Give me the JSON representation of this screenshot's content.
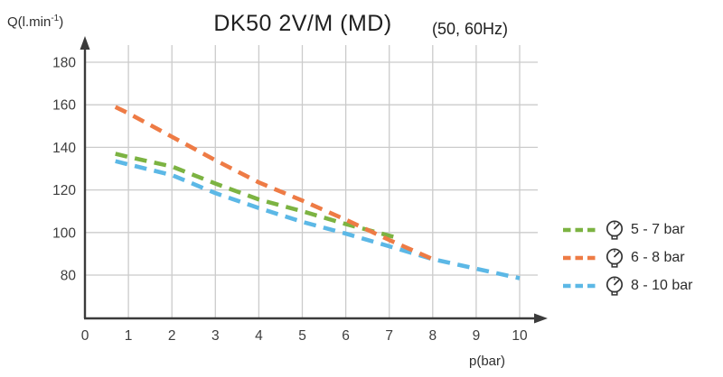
{
  "title": "DK50 2V/M (MD)",
  "subtitle": "(50, 60Hz)",
  "y_axis_label": {
    "base": "Q(l.min",
    "sup": "-1",
    "close": ")"
  },
  "x_axis_label": "p(bar)",
  "colors": {
    "axis": "#3b3b3b",
    "grid": "#cbcbcb",
    "tick_text": "#3d3d3d",
    "green": "#7cb342",
    "orange": "#ee7b45",
    "blue": "#5cb8e6"
  },
  "legend": [
    {
      "label": "5 - 7 bar",
      "color": "#7cb342",
      "icon": "pressure-gauge-icon"
    },
    {
      "label": "6 - 8 bar",
      "color": "#ee7b45",
      "icon": "pressure-gauge-icon"
    },
    {
      "label": "8 - 10 bar",
      "color": "#5cb8e6",
      "icon": "pressure-gauge-icon"
    }
  ],
  "chart_data": {
    "type": "line",
    "title": "DK50 2V/M (MD)",
    "subtitle": "(50, 60Hz)",
    "xlabel": "p(bar)",
    "ylabel": "Q(l.min-1)",
    "xlim": [
      0,
      10
    ],
    "ylim": [
      80,
      180
    ],
    "x_ticks": [
      0,
      1,
      2,
      3,
      4,
      5,
      6,
      7,
      8,
      9,
      10
    ],
    "y_ticks": [
      180,
      160,
      140,
      120,
      100,
      80
    ],
    "grid": true,
    "line_style": "dashed",
    "legend_position": "right",
    "series": [
      {
        "name": "5 - 7 bar",
        "color": "#7cb342",
        "points": [
          [
            0.7,
            137
          ],
          [
            1,
            135.5
          ],
          [
            2,
            131
          ],
          [
            3,
            123
          ],
          [
            4,
            115.5
          ],
          [
            5,
            110
          ],
          [
            6,
            104
          ],
          [
            7,
            98.5
          ],
          [
            7.2,
            97.5
          ]
        ]
      },
      {
        "name": "6 - 8 bar",
        "color": "#ee7b45",
        "points": [
          [
            0.7,
            159
          ],
          [
            1,
            156
          ],
          [
            2,
            145
          ],
          [
            3,
            134
          ],
          [
            4,
            123.5
          ],
          [
            5,
            115
          ],
          [
            6,
            106
          ],
          [
            7,
            96.5
          ],
          [
            8,
            87.5
          ]
        ]
      },
      {
        "name": "8 - 10 bar",
        "color": "#5cb8e6",
        "points": [
          [
            0.7,
            133.5
          ],
          [
            1,
            132
          ],
          [
            2,
            127
          ],
          [
            3,
            118.5
          ],
          [
            4,
            111.5
          ],
          [
            5,
            105
          ],
          [
            6,
            99.5
          ],
          [
            7,
            93.5
          ],
          [
            8,
            87.5
          ],
          [
            9,
            83
          ],
          [
            10,
            78.5
          ]
        ]
      }
    ]
  }
}
